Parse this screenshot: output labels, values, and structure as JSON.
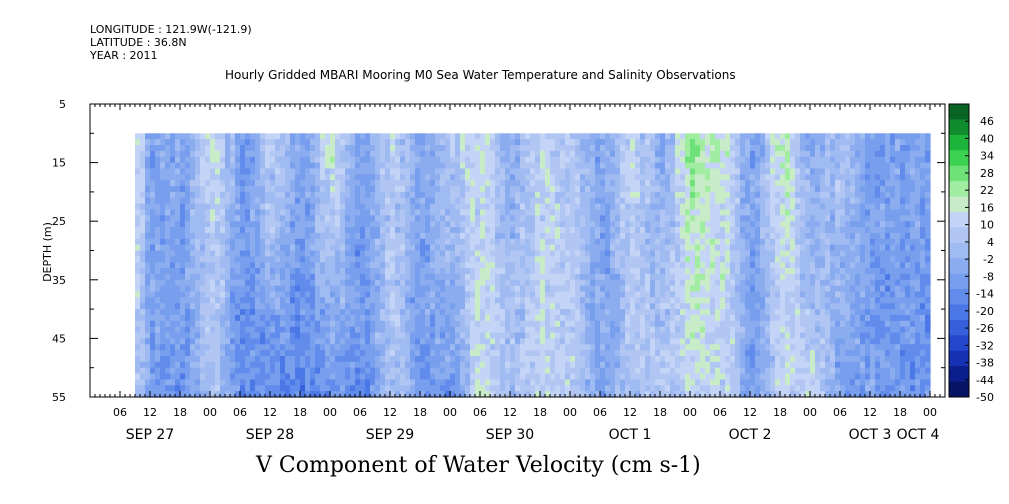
{
  "meta": {
    "longitude": "LONGITUDE : 121.9W(-121.9)",
    "latitude": "LATITUDE : 36.8N",
    "year": "YEAR : 2011"
  },
  "chart_data": {
    "type": "heatmap",
    "title": "Hourly Gridded MBARI Mooring M0 Sea Water Temperature and Salinity Observations",
    "xlabel": "V Component of Water Velocity (cm s-1)",
    "ylabel": "DEPTH (m)",
    "y_ticks": [
      5,
      15,
      25,
      35,
      45,
      55
    ],
    "ylim": [
      5,
      55
    ],
    "y_inverted": true,
    "x_hour_labels": [
      "06",
      "12",
      "18",
      "00",
      "06",
      "12",
      "18",
      "00",
      "06",
      "12",
      "18",
      "00",
      "06",
      "12",
      "18",
      "00",
      "06",
      "12",
      "18",
      "00",
      "06",
      "12",
      "18",
      "00",
      "06",
      "12",
      "18",
      "00"
    ],
    "x_day_labels": [
      "SEP 27",
      "SEP 28",
      "SEP 29",
      "SEP 30",
      "OCT  1",
      "OCT  2",
      "OCT  3",
      "OCT  4"
    ],
    "data_start": "SEP 27 09:00",
    "data_end": "OCT 3 23:00",
    "data_depth_range": [
      10,
      55
    ],
    "colorbar": {
      "ticks": [
        46,
        40,
        34,
        28,
        22,
        16,
        10,
        4,
        -2,
        -8,
        -14,
        -20,
        -26,
        -32,
        -38,
        -44,
        -50
      ],
      "range": [
        -50,
        52
      ]
    },
    "profile_v_by_segment": [
      {
        "x": "SEP 27 09:00",
        "v_surface": 14,
        "v_bottom": 2
      },
      {
        "x": "SEP 27 12:00",
        "v_surface": -8,
        "v_bottom": -10
      },
      {
        "x": "SEP 27 18:00",
        "v_surface": -4,
        "v_bottom": -12
      },
      {
        "x": "SEP 28 00:00",
        "v_surface": 12,
        "v_bottom": 4
      },
      {
        "x": "SEP 28 06:00",
        "v_surface": -8,
        "v_bottom": -14
      },
      {
        "x": "SEP 28 12:00",
        "v_surface": 10,
        "v_bottom": -16
      },
      {
        "x": "SEP 28 18:00",
        "v_surface": -6,
        "v_bottom": -18
      },
      {
        "x": "SEP 29 00:00",
        "v_surface": 16,
        "v_bottom": -12
      },
      {
        "x": "SEP 29 06:00",
        "v_surface": -8,
        "v_bottom": -14
      },
      {
        "x": "SEP 29 12:00",
        "v_surface": 8,
        "v_bottom": 4
      },
      {
        "x": "SEP 29 18:00",
        "v_surface": -6,
        "v_bottom": -10
      },
      {
        "x": "SEP 30 00:00",
        "v_surface": 8,
        "v_bottom": -12
      },
      {
        "x": "SEP 30 06:00",
        "v_surface": 12,
        "v_bottom": 14
      },
      {
        "x": "SEP 30 12:00",
        "v_surface": -4,
        "v_bottom": 6
      },
      {
        "x": "SEP 30 18:00",
        "v_surface": 10,
        "v_bottom": 12
      },
      {
        "x": "OCT 1 00:00",
        "v_surface": 6,
        "v_bottom": 8
      },
      {
        "x": "OCT 1 06:00",
        "v_surface": -6,
        "v_bottom": -8
      },
      {
        "x": "OCT 1 12:00",
        "v_surface": 10,
        "v_bottom": 4
      },
      {
        "x": "OCT 1 18:00",
        "v_surface": -4,
        "v_bottom": 6
      },
      {
        "x": "OCT 2 00:00",
        "v_surface": 22,
        "v_bottom": 12
      },
      {
        "x": "OCT 2 06:00",
        "v_surface": 16,
        "v_bottom": 10
      },
      {
        "x": "OCT 2 12:00",
        "v_surface": -8,
        "v_bottom": -10
      },
      {
        "x": "OCT 2 18:00",
        "v_surface": 18,
        "v_bottom": 10
      },
      {
        "x": "OCT 3 00:00",
        "v_surface": -6,
        "v_bottom": 10
      },
      {
        "x": "OCT 3 06:00",
        "v_surface": 6,
        "v_bottom": -8
      },
      {
        "x": "OCT 3 12:00",
        "v_surface": -10,
        "v_bottom": -8
      },
      {
        "x": "OCT 3 18:00",
        "v_surface": -8,
        "v_bottom": -12
      }
    ]
  }
}
